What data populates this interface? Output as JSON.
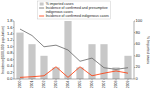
{
  "chart_data": {
    "type": "bar",
    "categories": [
      2000,
      2001,
      2002,
      2003,
      2004,
      2005,
      2006,
      2007,
      2008,
      2009
    ],
    "series": [
      {
        "name": "% imported cases",
        "type": "bar",
        "axis": "y2",
        "color": "#c8c8c8",
        "values": [
          80,
          60,
          40,
          20,
          100,
          20,
          60,
          60,
          20,
          40
        ]
      },
      {
        "name": "Incidence of confirmed and presumptive\nindigenous cases",
        "type": "line",
        "color": "#666666",
        "values": [
          1.55,
          1.35,
          1.0,
          1.05,
          0.9,
          0.55,
          0.65,
          0.35,
          0.3,
          0.35
        ]
      },
      {
        "name": "Incidence of confirmed indigenous cases",
        "type": "line",
        "color": "#ff3300",
        "values": [
          0.05,
          0.07,
          0.1,
          0.38,
          0.05,
          0.38,
          0.1,
          0.18,
          0.25,
          0.18
        ]
      }
    ],
    "y_label": "Incidence(/100,000 population)",
    "y2_label": "% Imported cases",
    "ylim": [
      0,
      1.8
    ],
    "yticks": [
      {
        "value": 0.0,
        "label": "0.0"
      },
      0.2,
      0.4,
      0.6,
      0.8,
      {
        "value": 1.0,
        "label": "1.0"
      },
      1.2,
      1.4,
      1.6,
      1.8
    ],
    "y2lim": [
      0,
      100
    ],
    "y2ticks": [
      0,
      20,
      40,
      60,
      80,
      100
    ],
    "grid": false,
    "legend": "top"
  }
}
